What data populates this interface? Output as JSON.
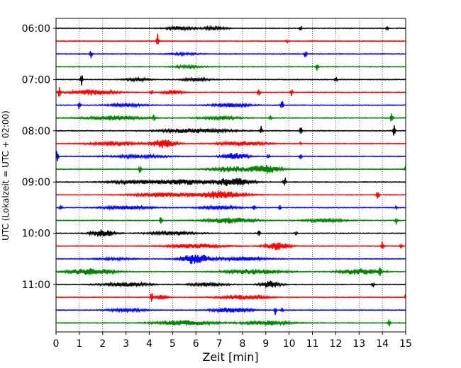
{
  "chart_data": {
    "type": "line",
    "title": "",
    "xlabel": "Zeit  [min]",
    "ylabel": "UTC (Lokalzeit = UTC + 02:00)",
    "xlim": [
      0,
      15
    ],
    "x_ticks": [
      0,
      1,
      2,
      3,
      4,
      5,
      6,
      7,
      8,
      9,
      10,
      11,
      12,
      13,
      14,
      15
    ],
    "x_tick_labels": [
      "0",
      "1",
      "2",
      "3",
      "4",
      "5",
      "6",
      "7",
      "8",
      "9",
      "10",
      "11",
      "12",
      "13",
      "14",
      "15"
    ],
    "y_tick_labels": [
      "06:00",
      "07:00",
      "08:00",
      "09:00",
      "10:00",
      "11:00"
    ],
    "trace_interval_minutes": 15,
    "grid": "vertical dotted lines at each minute",
    "trace_color_cycle": [
      "#000000",
      "#ff0000",
      "#0000ff",
      "#008000"
    ],
    "traces": [
      {
        "start": "06:00",
        "color": "#000000",
        "bursts": [
          {
            "t": 10.5,
            "a": 1.0,
            "w": 0.05
          },
          {
            "t": 14.2,
            "a": 0.8,
            "w": 0.05
          },
          {
            "t": 5.3,
            "a": 0.5,
            "w": 0.6
          },
          {
            "t": 6.8,
            "a": 0.4,
            "w": 0.5
          }
        ]
      },
      {
        "start": "06:15",
        "color": "#ff0000",
        "bursts": [
          {
            "t": 4.35,
            "a": 2.4,
            "w": 0.05
          },
          {
            "t": 9.9,
            "a": 0.5,
            "w": 0.05
          }
        ]
      },
      {
        "start": "06:30",
        "color": "#0000ff",
        "bursts": [
          {
            "t": 1.5,
            "a": 1.2,
            "w": 0.05
          },
          {
            "t": 10.7,
            "a": 1.3,
            "w": 0.05
          },
          {
            "t": 5.5,
            "a": 0.3,
            "w": 0.6
          }
        ]
      },
      {
        "start": "06:45",
        "color": "#008000",
        "bursts": [
          {
            "t": 11.2,
            "a": 1.4,
            "w": 0.05
          },
          {
            "t": 5.7,
            "a": 0.4,
            "w": 0.6
          }
        ]
      },
      {
        "start": "07:00",
        "color": "#000000",
        "bursts": [
          {
            "t": 1.1,
            "a": 1.6,
            "w": 0.05
          },
          {
            "t": 12.0,
            "a": 1.1,
            "w": 0.05
          },
          {
            "t": 3.5,
            "a": 0.4,
            "w": 0.5
          },
          {
            "t": 6.0,
            "a": 0.4,
            "w": 0.6
          }
        ]
      },
      {
        "start": "07:15",
        "color": "#ff0000",
        "bursts": [
          {
            "t": 0.15,
            "a": 1.8,
            "w": 0.05
          },
          {
            "t": 4.1,
            "a": 1.0,
            "w": 0.05
          },
          {
            "t": 8.7,
            "a": 1.3,
            "w": 0.05
          },
          {
            "t": 10.1,
            "a": 1.2,
            "w": 0.05
          },
          {
            "t": 1.6,
            "a": 0.8,
            "w": 0.9
          },
          {
            "t": 5.0,
            "a": 0.6,
            "w": 0.4
          }
        ]
      },
      {
        "start": "07:30",
        "color": "#0000ff",
        "bursts": [
          {
            "t": 1.0,
            "a": 1.3,
            "w": 0.05
          },
          {
            "t": 9.7,
            "a": 1.6,
            "w": 0.05
          },
          {
            "t": 3.0,
            "a": 0.4,
            "w": 0.8
          },
          {
            "t": 7.5,
            "a": 0.5,
            "w": 0.8
          }
        ]
      },
      {
        "start": "07:45",
        "color": "#008000",
        "bursts": [
          {
            "t": 4.2,
            "a": 1.0,
            "w": 0.05
          },
          {
            "t": 14.4,
            "a": 1.7,
            "w": 0.05
          },
          {
            "t": 9.2,
            "a": 0.8,
            "w": 0.05
          },
          {
            "t": 2.5,
            "a": 0.6,
            "w": 1.2
          },
          {
            "t": 7.0,
            "a": 0.5,
            "w": 0.8
          }
        ]
      },
      {
        "start": "08:00",
        "color": "#000000",
        "bursts": [
          {
            "t": 8.8,
            "a": 1.4,
            "w": 0.05
          },
          {
            "t": 10.5,
            "a": 1.2,
            "w": 0.05
          },
          {
            "t": 14.5,
            "a": 1.6,
            "w": 0.05
          },
          {
            "t": 6.0,
            "a": 0.6,
            "w": 1.5
          }
        ]
      },
      {
        "start": "08:15",
        "color": "#ff0000",
        "bursts": [
          {
            "t": 4.6,
            "a": 1.2,
            "w": 0.5
          },
          {
            "t": 2.5,
            "a": 0.6,
            "w": 1.0
          },
          {
            "t": 8.0,
            "a": 0.6,
            "w": 1.0
          },
          {
            "t": 10.5,
            "a": 0.5,
            "w": 0.05
          }
        ]
      },
      {
        "start": "08:30",
        "color": "#0000ff",
        "bursts": [
          {
            "t": 0.05,
            "a": 1.8,
            "w": 0.05
          },
          {
            "t": 7.7,
            "a": 1.0,
            "w": 0.5
          },
          {
            "t": 9.1,
            "a": 1.0,
            "w": 0.05
          },
          {
            "t": 10.5,
            "a": 0.8,
            "w": 0.05
          },
          {
            "t": 3.5,
            "a": 0.4,
            "w": 1.2
          }
        ]
      },
      {
        "start": "08:45",
        "color": "#008000",
        "bursts": [
          {
            "t": 3.6,
            "a": 1.3,
            "w": 0.05
          },
          {
            "t": 9.0,
            "a": 1.2,
            "w": 0.6
          },
          {
            "t": 7.5,
            "a": 0.8,
            "w": 0.8
          },
          {
            "t": 15.0,
            "a": 0.8,
            "w": 0.05
          }
        ]
      },
      {
        "start": "09:00",
        "color": "#000000",
        "bursts": [
          {
            "t": 9.8,
            "a": 1.9,
            "w": 0.05
          },
          {
            "t": 7.6,
            "a": 1.2,
            "w": 0.8
          },
          {
            "t": 3.5,
            "a": 0.5,
            "w": 1.2
          },
          {
            "t": 5.5,
            "a": 0.7,
            "w": 1.0
          }
        ]
      },
      {
        "start": "09:15",
        "color": "#ff0000",
        "bursts": [
          {
            "t": 13.8,
            "a": 1.4,
            "w": 0.05
          },
          {
            "t": 7.0,
            "a": 1.1,
            "w": 1.0
          },
          {
            "t": 4.5,
            "a": 0.6,
            "w": 1.2
          }
        ]
      },
      {
        "start": "09:30",
        "color": "#0000ff",
        "bursts": [
          {
            "t": 0.2,
            "a": 1.0,
            "w": 0.05
          },
          {
            "t": 8.5,
            "a": 0.9,
            "w": 0.05
          },
          {
            "t": 9.6,
            "a": 0.7,
            "w": 0.05
          },
          {
            "t": 14.6,
            "a": 0.6,
            "w": 0.05
          },
          {
            "t": 3.0,
            "a": 0.5,
            "w": 1.0
          },
          {
            "t": 7.0,
            "a": 0.5,
            "w": 0.8
          }
        ]
      },
      {
        "start": "09:45",
        "color": "#008000",
        "bursts": [
          {
            "t": 4.5,
            "a": 1.4,
            "w": 0.05
          },
          {
            "t": 14.6,
            "a": 1.5,
            "w": 0.05
          },
          {
            "t": 7.5,
            "a": 0.8,
            "w": 1.0
          },
          {
            "t": 11.5,
            "a": 0.5,
            "w": 0.8
          }
        ]
      },
      {
        "start": "10:00",
        "color": "#000000",
        "bursts": [
          {
            "t": 2.0,
            "a": 1.0,
            "w": 0.5
          },
          {
            "t": 8.7,
            "a": 1.2,
            "w": 0.05
          },
          {
            "t": 5.0,
            "a": 0.5,
            "w": 1.0
          },
          {
            "t": 10.3,
            "a": 0.6,
            "w": 0.05
          }
        ]
      },
      {
        "start": "10:15",
        "color": "#ff0000",
        "bursts": [
          {
            "t": 9.5,
            "a": 1.2,
            "w": 0.5
          },
          {
            "t": 14.0,
            "a": 1.4,
            "w": 0.05
          },
          {
            "t": 6.0,
            "a": 0.6,
            "w": 1.2
          },
          {
            "t": 14.8,
            "a": 0.8,
            "w": 0.05
          }
        ]
      },
      {
        "start": "10:30",
        "color": "#0000ff",
        "bursts": [
          {
            "t": 6.0,
            "a": 1.5,
            "w": 0.6
          },
          {
            "t": 8.0,
            "a": 0.5,
            "w": 1.0
          },
          {
            "t": 2.5,
            "a": 0.3,
            "w": 0.8
          }
        ]
      },
      {
        "start": "10:45",
        "color": "#008000",
        "bursts": [
          {
            "t": 13.9,
            "a": 1.5,
            "w": 0.05
          },
          {
            "t": 1.5,
            "a": 0.9,
            "w": 1.0
          },
          {
            "t": 8.5,
            "a": 0.7,
            "w": 1.2
          },
          {
            "t": 13.0,
            "a": 0.8,
            "w": 0.8
          }
        ]
      },
      {
        "start": "11:00",
        "color": "#000000",
        "bursts": [
          {
            "t": 9.2,
            "a": 1.0,
            "w": 0.4
          },
          {
            "t": 13.6,
            "a": 0.8,
            "w": 0.05
          },
          {
            "t": 3.0,
            "a": 0.5,
            "w": 1.0
          },
          {
            "t": 6.5,
            "a": 0.5,
            "w": 0.8
          }
        ]
      },
      {
        "start": "11:15",
        "color": "#ff0000",
        "bursts": [
          {
            "t": 4.1,
            "a": 1.3,
            "w": 0.05
          },
          {
            "t": 4.5,
            "a": 0.6,
            "w": 0.3
          },
          {
            "t": 8.0,
            "a": 0.6,
            "w": 1.0
          },
          {
            "t": 15.0,
            "a": 0.8,
            "w": 0.05
          }
        ]
      },
      {
        "start": "11:30",
        "color": "#0000ff",
        "bursts": [
          {
            "t": 9.4,
            "a": 1.3,
            "w": 0.05
          },
          {
            "t": 9.7,
            "a": 0.8,
            "w": 0.05
          },
          {
            "t": 7.5,
            "a": 0.7,
            "w": 0.8
          },
          {
            "t": 3.0,
            "a": 0.4,
            "w": 0.8
          }
        ]
      },
      {
        "start": "11:45",
        "color": "#008000",
        "bursts": [
          {
            "t": 14.3,
            "a": 1.4,
            "w": 0.05
          },
          {
            "t": 5.5,
            "a": 0.7,
            "w": 1.2
          },
          {
            "t": 9.0,
            "a": 0.6,
            "w": 1.0
          }
        ]
      }
    ]
  }
}
